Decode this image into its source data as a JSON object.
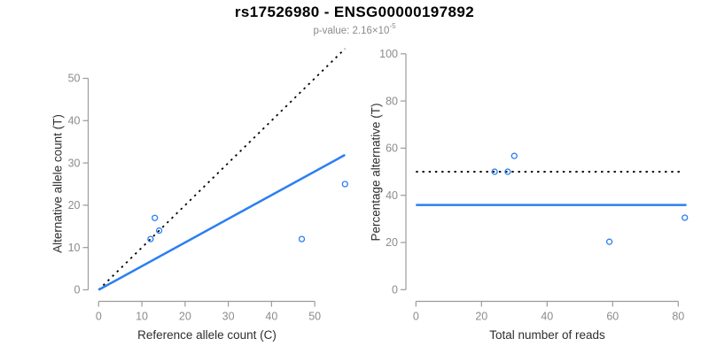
{
  "header": {
    "title": "rs17526980 - ENSG00000197892",
    "subtitle_prefix": "p-value: 2.16×10",
    "subtitle_exponent": "-5"
  },
  "colors": {
    "accent_blue": "#2b7ff2",
    "dotted_line": "#000000",
    "axis_line": "#9b9b9b",
    "tick_label": "#8c8c8c",
    "axis_title": "#2e2e2e"
  },
  "chart_data": [
    {
      "type": "scatter",
      "xlabel": "Reference allele count (C)",
      "ylabel": "Alternative allele count (T)",
      "xlim": [
        0,
        57
      ],
      "ylim": [
        0,
        50
      ],
      "xticks": [
        0,
        10,
        20,
        30,
        40,
        50
      ],
      "yticks": [
        0,
        10,
        20,
        30,
        40,
        50
      ],
      "grid": false,
      "points": [
        {
          "x": 12,
          "y": 12
        },
        {
          "x": 14,
          "y": 14
        },
        {
          "x": 13,
          "y": 17
        },
        {
          "x": 47,
          "y": 12
        },
        {
          "x": 57,
          "y": 25
        }
      ],
      "lines": [
        {
          "name": "identity-line",
          "style": "dotted",
          "color": "#000000",
          "x1": 0,
          "y1": 0,
          "x2": 57,
          "y2": 57
        },
        {
          "name": "fit-line",
          "style": "solid",
          "color": "#2b7ff2",
          "x1": 0,
          "y1": 0,
          "x2": 57,
          "y2": 31.9
        }
      ]
    },
    {
      "type": "scatter",
      "xlabel": "Total number of reads",
      "ylabel": "Percentage alternative (T)",
      "xlim": [
        0,
        82.5
      ],
      "ylim": [
        0,
        100
      ],
      "xticks": [
        0,
        20,
        40,
        60,
        80
      ],
      "yticks": [
        0,
        20,
        40,
        60,
        80,
        100
      ],
      "grid": false,
      "points": [
        {
          "x": 24,
          "y": 50
        },
        {
          "x": 28,
          "y": 50
        },
        {
          "x": 30,
          "y": 56.7
        },
        {
          "x": 59,
          "y": 20.3
        },
        {
          "x": 82,
          "y": 30.5
        }
      ],
      "lines": [
        {
          "name": "fifty-percent-line",
          "style": "dotted",
          "color": "#000000",
          "x1": 0,
          "y1": 50,
          "x2": 81.5,
          "y2": 50
        },
        {
          "name": "mean-percentage-line",
          "style": "solid",
          "color": "#2b7ff2",
          "x1": 0,
          "y1": 35.9,
          "x2": 82.5,
          "y2": 35.9
        }
      ]
    }
  ]
}
